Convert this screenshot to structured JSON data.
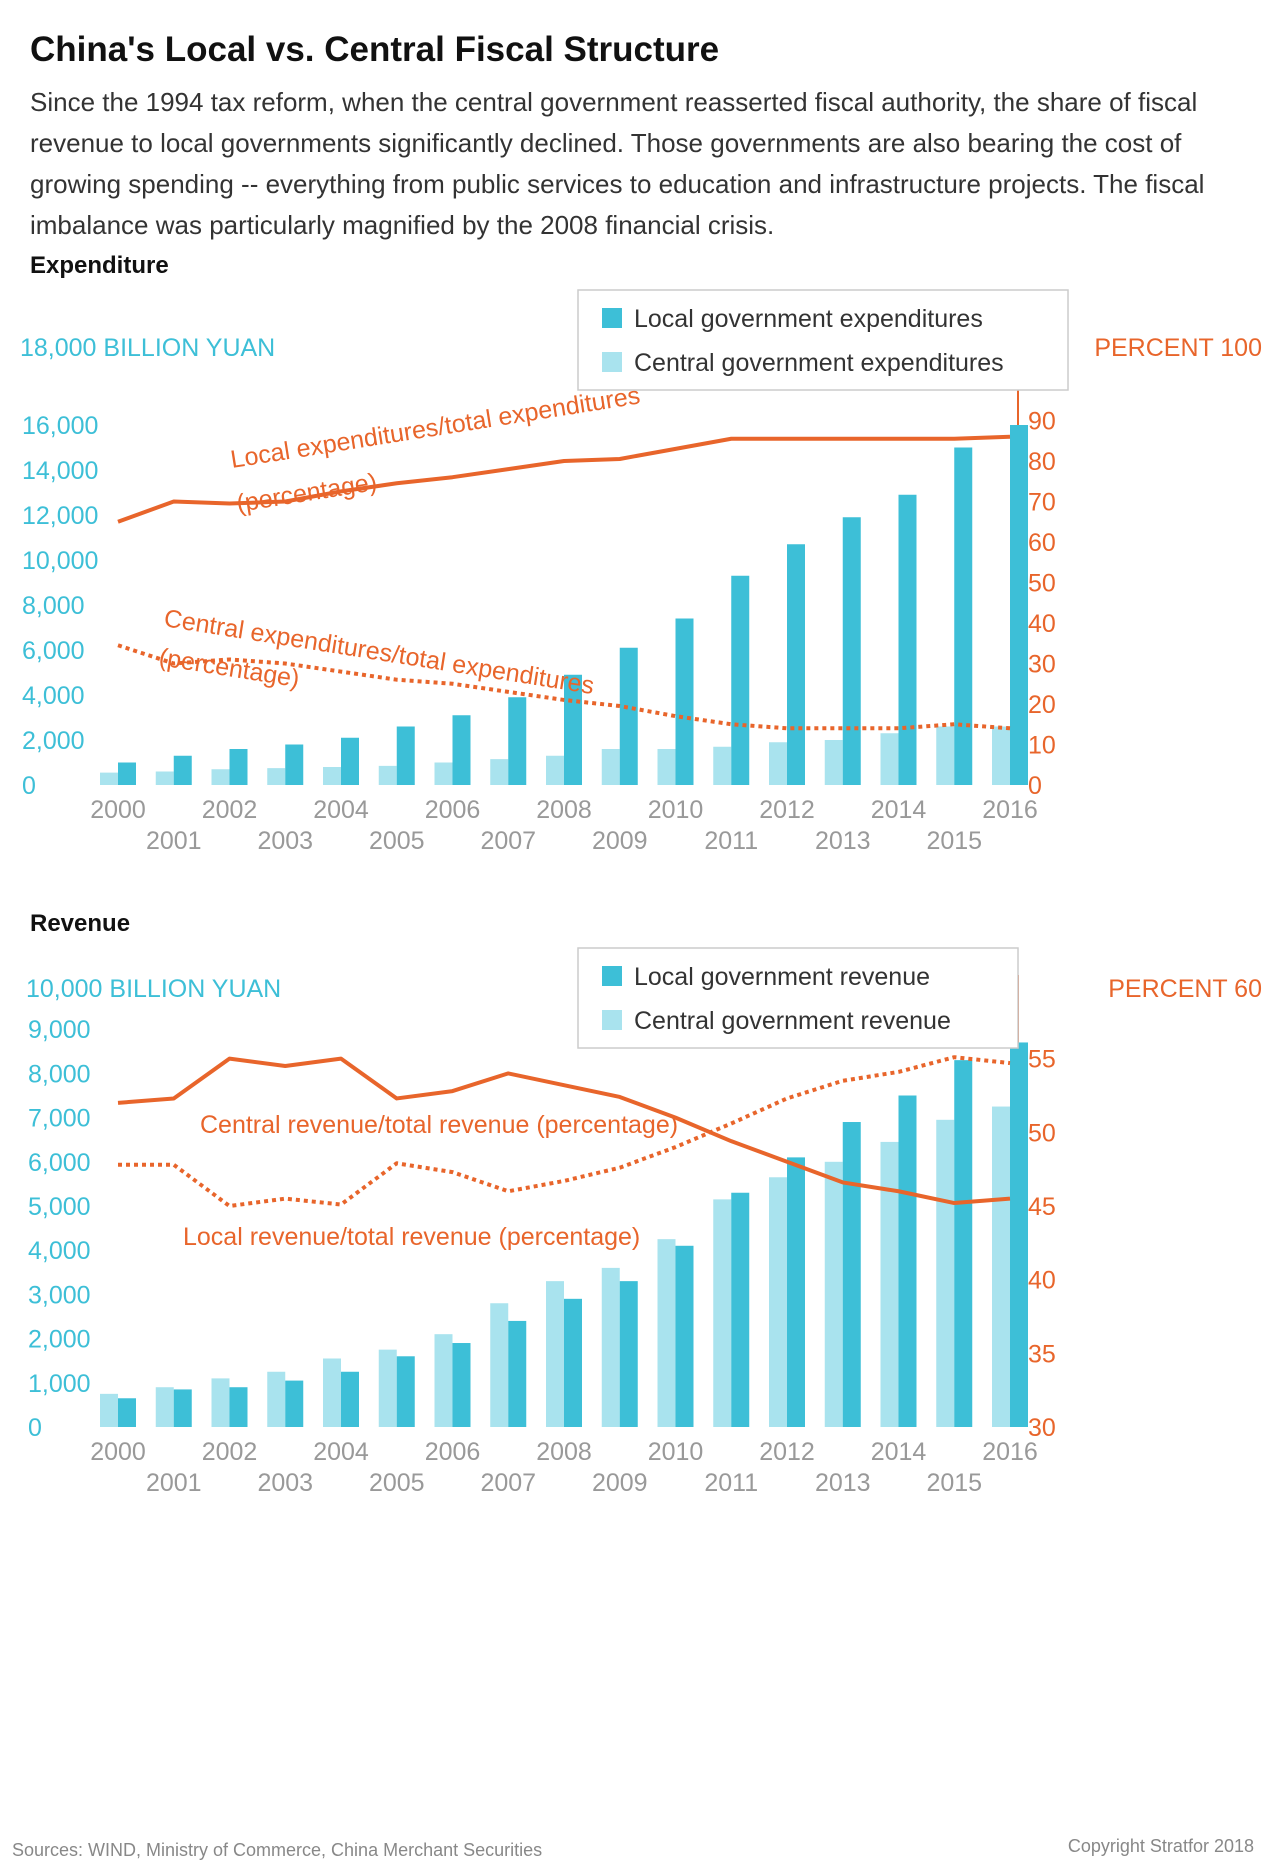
{
  "header": {
    "title": "China's Local vs. Central Fiscal Structure",
    "subtitle": "Since the 1994 tax reform, when the central government reasserted fiscal authority, the share of fiscal revenue to local governments significantly declined. Those governments are also bearing the cost of growing spending -- everything from public services to education and infrastructure projects. The fiscal imbalance was particularly magnified by the 2008 financial crisis."
  },
  "footer": {
    "sources": "Sources: WIND, Ministry of Commerce, China Merchant Securities",
    "copyright": "Copyright Stratfor 2018"
  },
  "colors": {
    "local_bar": "#3dbfd7",
    "central_bar": "#a9e3ee",
    "line": "#e8652b",
    "axis_left": "#3dbfd7",
    "axis_right": "#e8652b",
    "tick_x": "#999999"
  },
  "chart_data": [
    {
      "type": "bar",
      "title": "Expenditure",
      "left_axis_label": "18,000 BILLION YUAN",
      "right_axis_label": "PERCENT 100",
      "ylim": [
        0,
        18000
      ],
      "y2lim": [
        0,
        100
      ],
      "y_ticks": [
        "0",
        "2,000",
        "4,000",
        "6,000",
        "8,000",
        "10,000",
        "12,000",
        "14,000",
        "16,000"
      ],
      "y2_ticks": [
        "0",
        "10",
        "20",
        "30",
        "40",
        "50",
        "60",
        "70",
        "80",
        "90"
      ],
      "categories": [
        "2000",
        "2001",
        "2002",
        "2003",
        "2004",
        "2005",
        "2006",
        "2007",
        "2008",
        "2009",
        "2010",
        "2011",
        "2012",
        "2013",
        "2014",
        "2015",
        "2016"
      ],
      "legend": [
        "Local government expenditures",
        "Central government expenditures"
      ],
      "series": [
        {
          "name": "Local government expenditures",
          "type": "bar",
          "values": [
            1000,
            1300,
            1600,
            1800,
            2100,
            2600,
            3100,
            3900,
            4900,
            6100,
            7400,
            9300,
            10700,
            11900,
            12900,
            15000,
            16000
          ]
        },
        {
          "name": "Central government expenditures",
          "type": "bar",
          "values": [
            550,
            600,
            700,
            750,
            800,
            850,
            1000,
            1150,
            1300,
            1600,
            1600,
            1700,
            1900,
            2000,
            2300,
            2600,
            2600
          ]
        },
        {
          "name": "Local expenditures/total expenditures (percentage)",
          "type": "line",
          "axis": "right",
          "style": "solid",
          "values": [
            65,
            70,
            69.5,
            70,
            72.5,
            74.5,
            76,
            78,
            80,
            80.5,
            83,
            85.5,
            85.5,
            85.5,
            85.5,
            85.5,
            86
          ]
        },
        {
          "name": "Central expenditures/total expenditures (percentage)",
          "type": "line",
          "axis": "right",
          "style": "dotted",
          "values": [
            34.5,
            30,
            31,
            30,
            28,
            26,
            25,
            23,
            21,
            19.5,
            17,
            15,
            14,
            14,
            14,
            15,
            14
          ]
        }
      ],
      "annotations": [
        {
          "text": "Local expenditures/total expenditures",
          "series": 2
        },
        {
          "text": "(percentage)",
          "series": 2
        },
        {
          "text": "Central expenditures/total expenditures",
          "series": 3
        },
        {
          "text": "(percentage)",
          "series": 3
        }
      ]
    },
    {
      "type": "bar",
      "title": "Revenue",
      "left_axis_label": "10,000 BILLION YUAN",
      "right_axis_label": "PERCENT 60",
      "ylim": [
        0,
        10000
      ],
      "y2lim": [
        30,
        60
      ],
      "y_ticks": [
        "0",
        "1,000",
        "2,000",
        "3,000",
        "4,000",
        "5,000",
        "6,000",
        "7,000",
        "8,000",
        "9,000"
      ],
      "y2_ticks": [
        "30",
        "35",
        "40",
        "45",
        "50",
        "55"
      ],
      "categories": [
        "2000",
        "2001",
        "2002",
        "2003",
        "2004",
        "2005",
        "2006",
        "2007",
        "2008",
        "2009",
        "2010",
        "2011",
        "2012",
        "2013",
        "2014",
        "2015",
        "2016"
      ],
      "legend": [
        "Local government revenue",
        "Central government revenue"
      ],
      "series": [
        {
          "name": "Local government revenue",
          "type": "bar",
          "values": [
            650,
            850,
            900,
            1050,
            1250,
            1600,
            1900,
            2400,
            2900,
            3300,
            4100,
            5300,
            6100,
            6900,
            7500,
            8300,
            8700
          ]
        },
        {
          "name": "Central government revenue",
          "type": "bar",
          "values": [
            750,
            900,
            1100,
            1250,
            1550,
            1750,
            2100,
            2800,
            3300,
            3600,
            4250,
            5150,
            5650,
            6000,
            6450,
            6950,
            7250
          ]
        },
        {
          "name": "Central revenue/total revenue (percentage)",
          "type": "line",
          "axis": "right",
          "style": "solid",
          "values": [
            52,
            52.3,
            55,
            54.5,
            55,
            52.3,
            52.8,
            54,
            53.2,
            52.4,
            51,
            49.4,
            48,
            46.6,
            46,
            45.2,
            45.5
          ]
        },
        {
          "name": "Local revenue/total revenue (percentage)",
          "type": "line",
          "axis": "right",
          "style": "dotted",
          "values": [
            47.8,
            47.8,
            45,
            45.5,
            45.1,
            47.9,
            47.3,
            46,
            46.7,
            47.6,
            49,
            50.6,
            52.3,
            53.5,
            54.1,
            55.1,
            54.7
          ]
        }
      ],
      "annotations": [
        {
          "text": "Central revenue/total revenue (percentage)",
          "series": 2
        },
        {
          "text": "Local revenue/total revenue (percentage)",
          "series": 3
        }
      ]
    }
  ]
}
